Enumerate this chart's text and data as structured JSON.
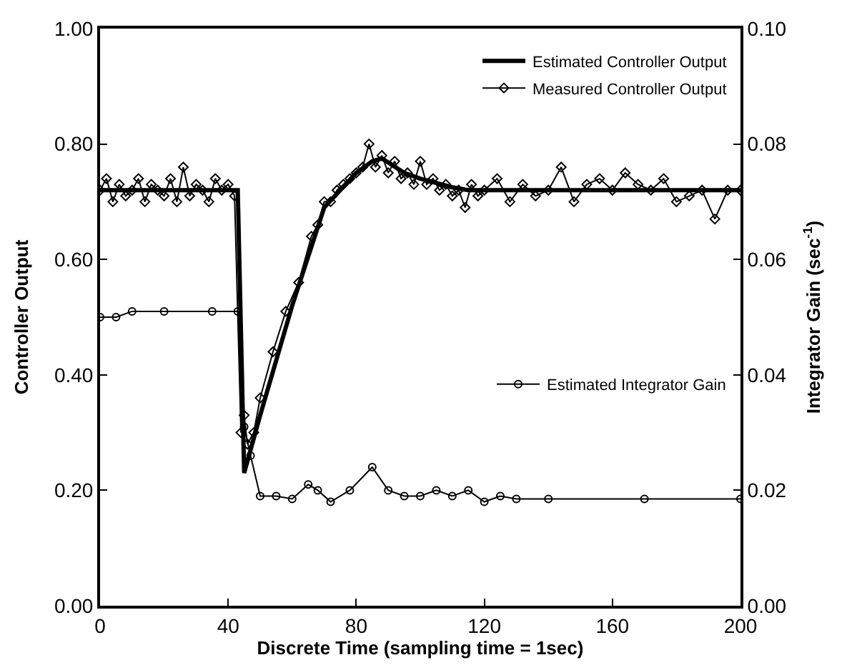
{
  "chart_data": {
    "type": "line",
    "xlabel": "Discrete Time (sampling time = 1sec)",
    "ylabel": "Controller Output",
    "y2label": "Integrator Gain (sec$^{-1}$)",
    "xlim": [
      0,
      200
    ],
    "xticks": [
      0,
      40,
      80,
      120,
      160,
      200
    ],
    "ylim": [
      0,
      1
    ],
    "yticks": [
      {
        "value": 0,
        "label": "0.00"
      },
      {
        "value": 0.2,
        "label": "0.20"
      },
      {
        "value": 0.4,
        "label": "0.40"
      },
      {
        "value": 0.6,
        "label": "0.60"
      },
      {
        "value": 0.8,
        "label": "0.80"
      },
      {
        "value": 1,
        "label": "1.00"
      }
    ],
    "y2lim": [
      0,
      0.1
    ],
    "y2ticks": [
      {
        "value": 0,
        "label": "0.00"
      },
      {
        "value": 0.02,
        "label": "0.02"
      },
      {
        "value": 0.04,
        "label": "0.04"
      },
      {
        "value": 0.06,
        "label": "0.06"
      },
      {
        "value": 0.08,
        "label": "0.08"
      },
      {
        "value": 0.1,
        "label": "0.10"
      }
    ],
    "legend": "top right",
    "series": [
      {
        "name": "Estimated Controller Output",
        "color": "#000000",
        "marker": "none",
        "x": [
          0,
          43,
          45,
          50,
          60,
          70,
          80,
          85,
          88,
          95,
          100,
          110,
          115,
          130,
          200
        ],
        "values": [
          0.72,
          0.72,
          0.23,
          0.33,
          0.52,
          0.69,
          0.75,
          0.77,
          0.775,
          0.75,
          0.74,
          0.725,
          0.72,
          0.72,
          0.72
        ]
      },
      {
        "name": "Measured Controller Output",
        "color": "#000000",
        "marker": "diamond",
        "x": [
          0,
          2,
          4,
          6,
          8,
          10,
          12,
          14,
          16,
          18,
          20,
          22,
          24,
          26,
          28,
          30,
          32,
          34,
          36,
          38,
          40,
          42,
          44,
          45,
          46,
          48,
          50,
          54,
          58,
          62,
          66,
          68,
          70,
          72,
          74,
          76,
          78,
          80,
          82,
          84,
          86,
          88,
          90,
          92,
          94,
          96,
          98,
          100,
          102,
          104,
          106,
          108,
          110,
          112,
          114,
          116,
          118,
          120,
          124,
          128,
          132,
          136,
          140,
          144,
          148,
          152,
          156,
          160,
          164,
          168,
          172,
          176,
          180,
          184,
          188,
          192,
          196,
          200
        ],
        "values": [
          0.72,
          0.74,
          0.7,
          0.73,
          0.71,
          0.72,
          0.74,
          0.7,
          0.73,
          0.72,
          0.71,
          0.74,
          0.7,
          0.76,
          0.71,
          0.73,
          0.72,
          0.7,
          0.74,
          0.72,
          0.73,
          0.71,
          0.3,
          0.33,
          0.28,
          0.3,
          0.36,
          0.44,
          0.51,
          0.56,
          0.64,
          0.66,
          0.7,
          0.7,
          0.72,
          0.73,
          0.74,
          0.75,
          0.76,
          0.8,
          0.76,
          0.78,
          0.75,
          0.77,
          0.74,
          0.75,
          0.73,
          0.77,
          0.73,
          0.74,
          0.72,
          0.73,
          0.71,
          0.72,
          0.69,
          0.73,
          0.71,
          0.72,
          0.74,
          0.7,
          0.73,
          0.71,
          0.72,
          0.76,
          0.7,
          0.73,
          0.74,
          0.72,
          0.75,
          0.73,
          0.72,
          0.74,
          0.7,
          0.71,
          0.72,
          0.67,
          0.72,
          0.72
        ]
      },
      {
        "name": "Estimated Integrator Gain",
        "color": "#000000",
        "marker": "circle",
        "axis": "y2",
        "x": [
          0,
          5,
          10,
          20,
          35,
          43,
          45,
          47,
          50,
          55,
          60,
          65,
          68,
          72,
          78,
          85,
          90,
          95,
          100,
          105,
          110,
          115,
          120,
          125,
          130,
          140,
          170,
          200
        ],
        "values": [
          0.05,
          0.05,
          0.051,
          0.051,
          0.051,
          0.051,
          0.031,
          0.026,
          0.019,
          0.019,
          0.0185,
          0.021,
          0.02,
          0.018,
          0.02,
          0.024,
          0.02,
          0.019,
          0.019,
          0.02,
          0.019,
          0.02,
          0.018,
          0.019,
          0.0185,
          0.0185,
          0.0185,
          0.0185
        ]
      }
    ]
  }
}
